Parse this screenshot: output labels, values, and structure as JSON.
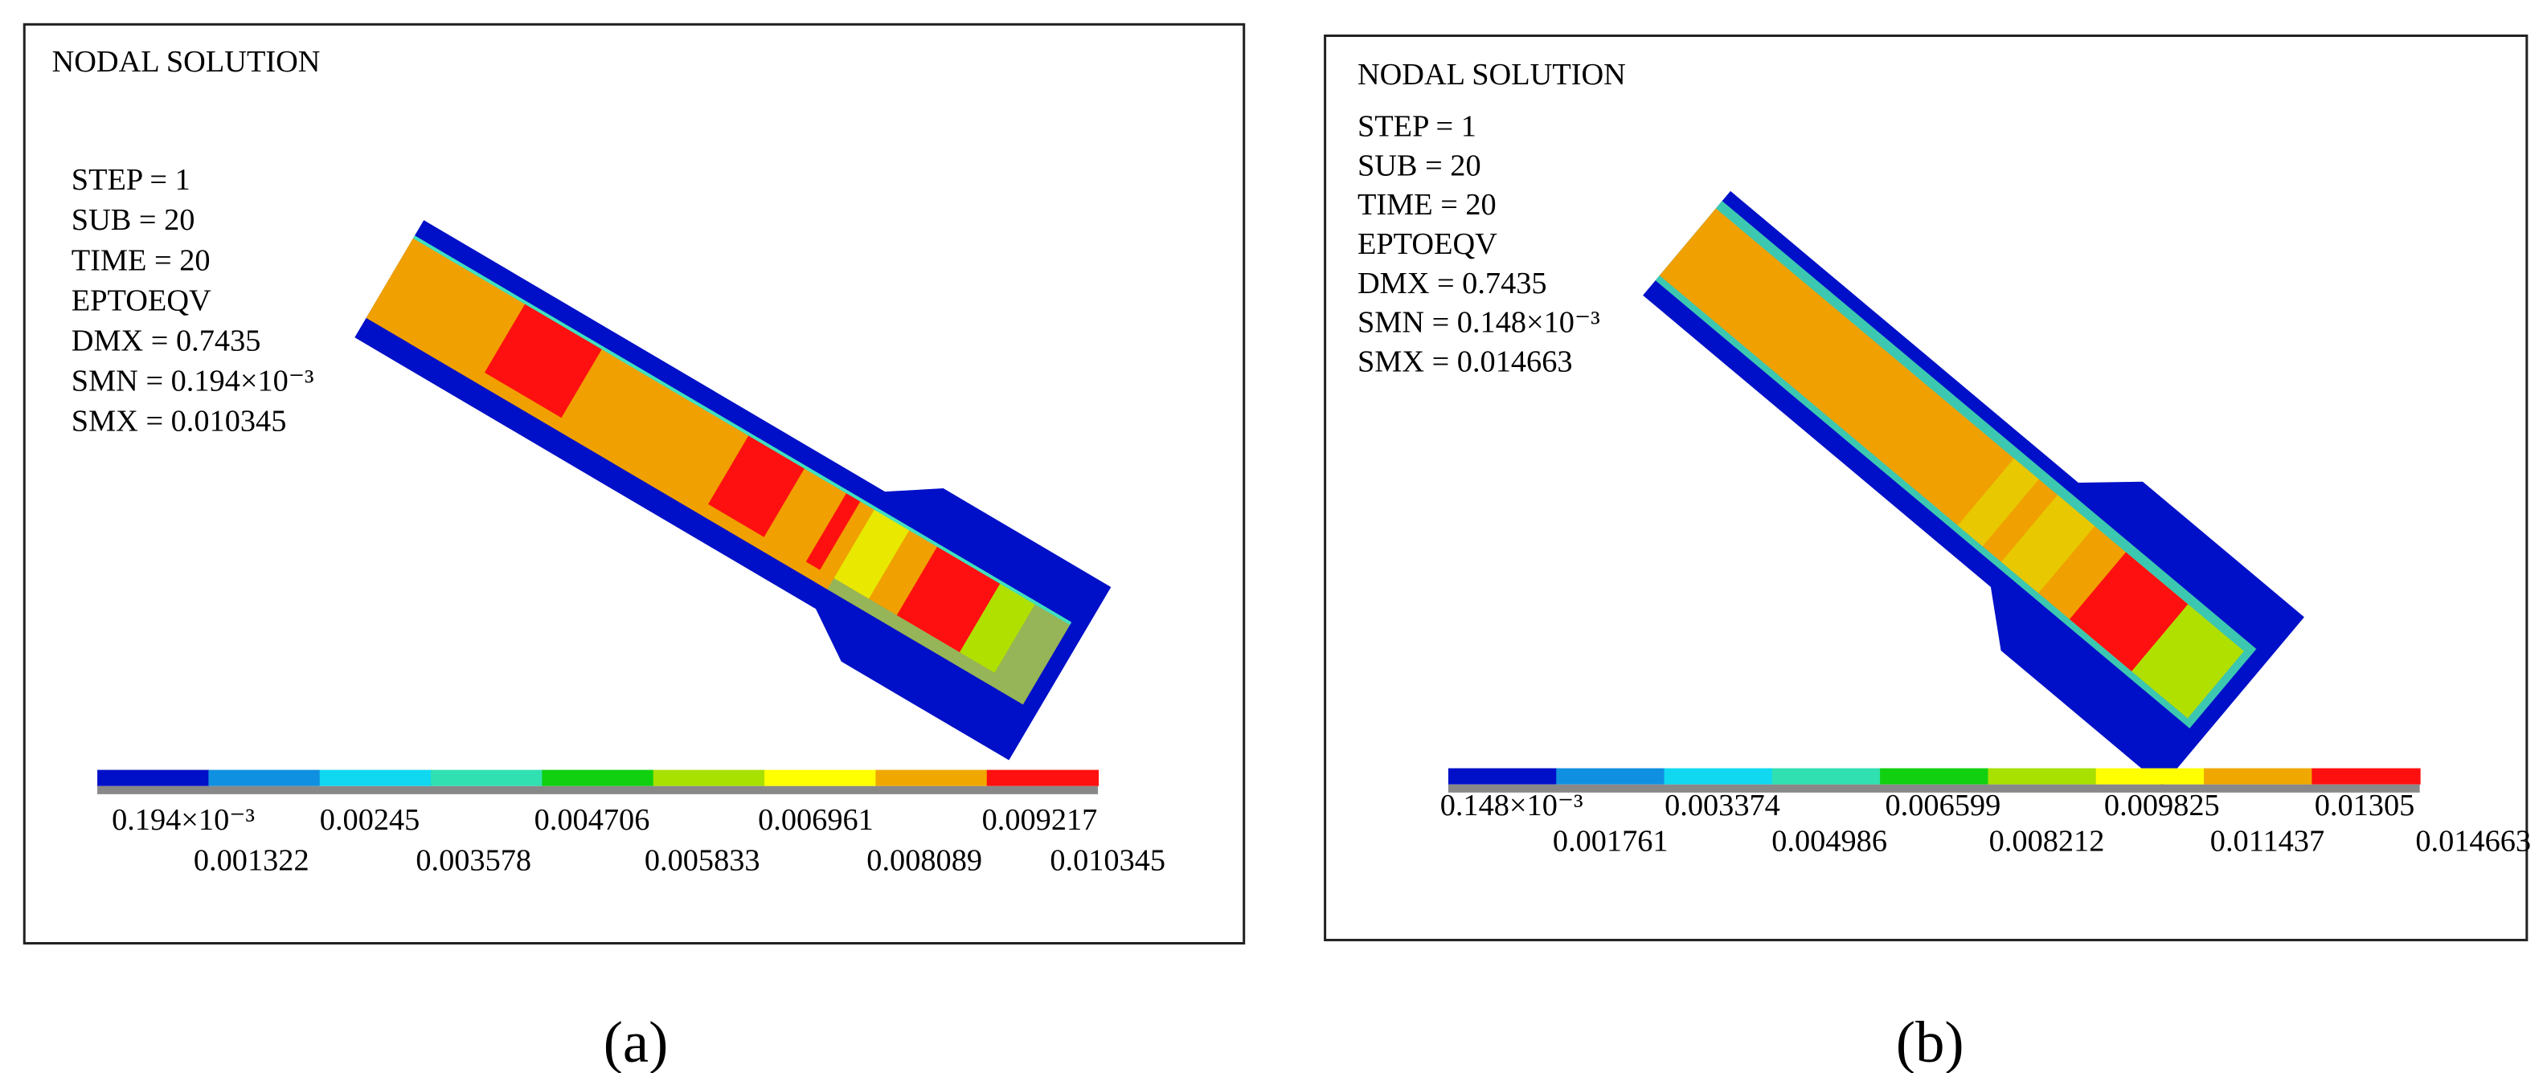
{
  "panels": [
    {
      "label": "(a)",
      "title": "NODAL SOLUTION",
      "info": [
        "STEP = 1",
        "SUB = 20",
        "TIME = 20",
        "EPTOEQV",
        "DMX = 0.7435",
        "SMN = 0.194×10⁻³",
        "SMX = 0.010345"
      ],
      "legend": [
        "0.194×10⁻³",
        "0.001322",
        "0.00245",
        "0.003578",
        "0.004706",
        "0.005833",
        "0.006961",
        "0.008089",
        "0.009217",
        "0.010345"
      ]
    },
    {
      "label": "(b)",
      "title": "NODAL SOLUTION",
      "info": [
        "STEP = 1",
        "SUB = 20",
        "TIME = 20",
        "EPTOEQV",
        "DMX = 0.7435",
        "SMN = 0.148×10⁻³",
        "SMX = 0.014663"
      ],
      "legend": [
        "0.148×10⁻³",
        "0.001761",
        "0.003374",
        "0.004986",
        "0.006599",
        "0.008212",
        "0.009825",
        "0.011437",
        "0.01305",
        "0.014663"
      ]
    }
  ]
}
